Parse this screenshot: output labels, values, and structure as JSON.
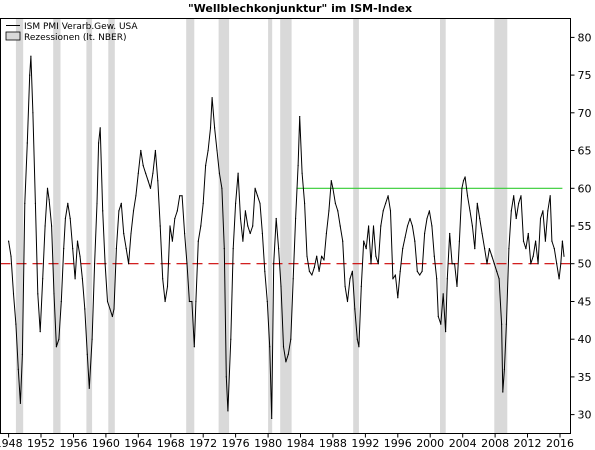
{
  "chart_data": {
    "type": "line",
    "title": "\"Wellblechkonjunktur\" im ISM-Index",
    "legend": [
      {
        "label": "ISM PMI Verarb.Gew. USA",
        "kind": "line",
        "color": "#000000"
      },
      {
        "label": "Rezessionen (lt. NBER)",
        "kind": "box",
        "color": "#d9d9d9"
      }
    ],
    "legend_placement": "top-left",
    "xlim": [
      1947.0,
      2017.3
    ],
    "ylim": [
      27.5,
      82.5
    ],
    "x_ticks": [
      1948,
      1952,
      1956,
      1960,
      1964,
      1968,
      1972,
      1976,
      1980,
      1984,
      1988,
      1992,
      1996,
      2000,
      2004,
      2008,
      2012,
      2016
    ],
    "y_ticks": [
      30,
      35,
      40,
      45,
      50,
      55,
      60,
      65,
      70,
      75,
      80
    ],
    "y_axis_side": "right",
    "grid": false,
    "recessions": [
      [
        1948.9,
        1949.8
      ],
      [
        1953.5,
        1954.4
      ],
      [
        1957.6,
        1958.3
      ],
      [
        1960.3,
        1961.1
      ],
      [
        1969.9,
        1970.9
      ],
      [
        1973.9,
        1975.2
      ],
      [
        1980.0,
        1980.5
      ],
      [
        1981.5,
        1982.9
      ],
      [
        1990.5,
        1991.2
      ],
      [
        2001.2,
        2001.9
      ],
      [
        2007.9,
        2009.5
      ]
    ],
    "reference_lines": [
      {
        "name": "threshold-50",
        "y": 50,
        "x_from": 1947.0,
        "x_to": 2017.3,
        "color": "#cc0000",
        "style": "dashed"
      },
      {
        "name": "level-60",
        "y": 60,
        "x_from": 1983.5,
        "x_to": 2016.3,
        "color": "#33cc33",
        "style": "solid"
      }
    ],
    "series": [
      {
        "name": "ISM PMI Verarb.Gew. USA",
        "color": "#000000",
        "points": [
          [
            1948.0,
            53.0
          ],
          [
            1948.3,
            51.0
          ],
          [
            1948.6,
            46.0
          ],
          [
            1948.9,
            42.0
          ],
          [
            1949.2,
            36.0
          ],
          [
            1949.45,
            31.5
          ],
          [
            1949.7,
            38.0
          ],
          [
            1950.0,
            58.0
          ],
          [
            1950.3,
            66.0
          ],
          [
            1950.6,
            75.0
          ],
          [
            1950.75,
            77.5
          ],
          [
            1951.0,
            70.0
          ],
          [
            1951.3,
            58.0
          ],
          [
            1951.6,
            46.0
          ],
          [
            1951.9,
            41.0
          ],
          [
            1952.2,
            48.0
          ],
          [
            1952.5,
            55.0
          ],
          [
            1952.8,
            60.0
          ],
          [
            1953.0,
            58.5
          ],
          [
            1953.3,
            55.0
          ],
          [
            1953.6,
            46.0
          ],
          [
            1953.9,
            39.0
          ],
          [
            1954.2,
            40.0
          ],
          [
            1954.5,
            45.0
          ],
          [
            1954.8,
            52.0
          ],
          [
            1955.0,
            56.0
          ],
          [
            1955.3,
            58.0
          ],
          [
            1955.6,
            56.0
          ],
          [
            1955.9,
            52.0
          ],
          [
            1956.2,
            48.0
          ],
          [
            1956.5,
            53.0
          ],
          [
            1956.8,
            51.0
          ],
          [
            1957.1,
            48.0
          ],
          [
            1957.4,
            44.0
          ],
          [
            1957.7,
            38.0
          ],
          [
            1957.95,
            33.5
          ],
          [
            1958.3,
            40.0
          ],
          [
            1958.6,
            50.0
          ],
          [
            1958.9,
            58.0
          ],
          [
            1959.1,
            66.0
          ],
          [
            1959.3,
            68.0
          ],
          [
            1959.6,
            57.0
          ],
          [
            1959.9,
            50.0
          ],
          [
            1960.2,
            45.0
          ],
          [
            1960.5,
            44.0
          ],
          [
            1960.8,
            43.0
          ],
          [
            1961.0,
            44.0
          ],
          [
            1961.3,
            52.0
          ],
          [
            1961.6,
            57.0
          ],
          [
            1961.9,
            58.0
          ],
          [
            1962.2,
            54.0
          ],
          [
            1962.5,
            52.0
          ],
          [
            1962.8,
            50.0
          ],
          [
            1963.1,
            54.0
          ],
          [
            1963.4,
            57.0
          ],
          [
            1963.7,
            59.0
          ],
          [
            1964.0,
            62.0
          ],
          [
            1964.3,
            65.0
          ],
          [
            1964.6,
            63.0
          ],
          [
            1964.9,
            62.0
          ],
          [
            1965.2,
            61.0
          ],
          [
            1965.5,
            60.0
          ],
          [
            1965.8,
            62.0
          ],
          [
            1966.1,
            65.0
          ],
          [
            1966.4,
            61.0
          ],
          [
            1966.7,
            55.0
          ],
          [
            1967.0,
            48.0
          ],
          [
            1967.3,
            45.0
          ],
          [
            1967.6,
            47.0
          ],
          [
            1967.9,
            55.0
          ],
          [
            1968.2,
            53.0
          ],
          [
            1968.5,
            56.0
          ],
          [
            1968.8,
            57.0
          ],
          [
            1969.1,
            59.0
          ],
          [
            1969.4,
            59.0
          ],
          [
            1969.7,
            54.0
          ],
          [
            1970.0,
            50.0
          ],
          [
            1970.3,
            45.0
          ],
          [
            1970.6,
            45.0
          ],
          [
            1970.9,
            39.0
          ],
          [
            1971.1,
            45.0
          ],
          [
            1971.4,
            53.0
          ],
          [
            1971.7,
            55.0
          ],
          [
            1972.0,
            58.0
          ],
          [
            1972.3,
            63.0
          ],
          [
            1972.6,
            65.0
          ],
          [
            1972.9,
            68.0
          ],
          [
            1973.1,
            72.0
          ],
          [
            1973.4,
            68.0
          ],
          [
            1973.7,
            65.0
          ],
          [
            1974.0,
            62.0
          ],
          [
            1974.3,
            60.0
          ],
          [
            1974.6,
            52.0
          ],
          [
            1974.85,
            35.0
          ],
          [
            1975.05,
            30.5
          ],
          [
            1975.4,
            40.0
          ],
          [
            1975.7,
            52.0
          ],
          [
            1976.0,
            58.0
          ],
          [
            1976.3,
            62.0
          ],
          [
            1976.6,
            56.0
          ],
          [
            1976.9,
            53.0
          ],
          [
            1977.2,
            57.0
          ],
          [
            1977.5,
            55.0
          ],
          [
            1977.8,
            54.0
          ],
          [
            1978.1,
            55.0
          ],
          [
            1978.4,
            60.0
          ],
          [
            1978.7,
            59.0
          ],
          [
            1979.0,
            58.0
          ],
          [
            1979.3,
            54.0
          ],
          [
            1979.6,
            49.0
          ],
          [
            1979.9,
            45.0
          ],
          [
            1980.2,
            39.0
          ],
          [
            1980.45,
            29.5
          ],
          [
            1980.7,
            50.0
          ],
          [
            1981.0,
            56.0
          ],
          [
            1981.3,
            52.0
          ],
          [
            1981.6,
            47.0
          ],
          [
            1981.9,
            39.0
          ],
          [
            1982.2,
            37.0
          ],
          [
            1982.5,
            38.0
          ],
          [
            1982.8,
            40.0
          ],
          [
            1983.1,
            48.0
          ],
          [
            1983.4,
            56.0
          ],
          [
            1983.7,
            63.0
          ],
          [
            1983.9,
            69.5
          ],
          [
            1984.2,
            62.0
          ],
          [
            1984.5,
            58.0
          ],
          [
            1984.8,
            51.0
          ],
          [
            1985.1,
            49.0
          ],
          [
            1985.4,
            48.5
          ],
          [
            1985.7,
            49.5
          ],
          [
            1986.0,
            51.0
          ],
          [
            1986.3,
            49.0
          ],
          [
            1986.6,
            51.0
          ],
          [
            1986.9,
            50.5
          ],
          [
            1987.2,
            54.0
          ],
          [
            1987.5,
            57.0
          ],
          [
            1987.8,
            61.0
          ],
          [
            1988.0,
            60.0
          ],
          [
            1988.3,
            58.0
          ],
          [
            1988.6,
            57.0
          ],
          [
            1988.9,
            55.0
          ],
          [
            1989.2,
            53.0
          ],
          [
            1989.5,
            47.0
          ],
          [
            1989.8,
            45.0
          ],
          [
            1990.1,
            48.0
          ],
          [
            1990.4,
            49.0
          ],
          [
            1990.7,
            44.0
          ],
          [
            1991.0,
            40.0
          ],
          [
            1991.2,
            39.0
          ],
          [
            1991.5,
            47.0
          ],
          [
            1991.8,
            53.0
          ],
          [
            1992.1,
            52.0
          ],
          [
            1992.4,
            55.0
          ],
          [
            1992.7,
            50.0
          ],
          [
            1993.0,
            55.0
          ],
          [
            1993.3,
            51.0
          ],
          [
            1993.6,
            50.0
          ],
          [
            1993.9,
            55.0
          ],
          [
            1994.2,
            57.0
          ],
          [
            1994.5,
            58.0
          ],
          [
            1994.8,
            59.0
          ],
          [
            1995.1,
            57.0
          ],
          [
            1995.4,
            48.0
          ],
          [
            1995.7,
            48.5
          ],
          [
            1996.0,
            45.5
          ],
          [
            1996.3,
            49.0
          ],
          [
            1996.6,
            52.0
          ],
          [
            1996.9,
            53.5
          ],
          [
            1997.2,
            55.0
          ],
          [
            1997.5,
            56.0
          ],
          [
            1997.8,
            55.0
          ],
          [
            1998.1,
            53.0
          ],
          [
            1998.4,
            49.0
          ],
          [
            1998.7,
            48.5
          ],
          [
            1999.0,
            49.0
          ],
          [
            1999.3,
            54.0
          ],
          [
            1999.6,
            56.0
          ],
          [
            1999.9,
            57.0
          ],
          [
            2000.2,
            55.0
          ],
          [
            2000.5,
            51.0
          ],
          [
            2000.8,
            48.0
          ],
          [
            2001.0,
            43.0
          ],
          [
            2001.3,
            42.0
          ],
          [
            2001.6,
            46.0
          ],
          [
            2001.9,
            41.0
          ],
          [
            2002.1,
            48.0
          ],
          [
            2002.4,
            54.0
          ],
          [
            2002.7,
            50.0
          ],
          [
            2003.0,
            50.0
          ],
          [
            2003.3,
            47.0
          ],
          [
            2003.6,
            53.0
          ],
          [
            2003.9,
            60.0
          ],
          [
            2004.1,
            61.0
          ],
          [
            2004.3,
            61.5
          ],
          [
            2004.6,
            59.0
          ],
          [
            2004.9,
            57.0
          ],
          [
            2005.2,
            55.0
          ],
          [
            2005.5,
            52.0
          ],
          [
            2005.8,
            58.0
          ],
          [
            2006.1,
            56.0
          ],
          [
            2006.4,
            54.0
          ],
          [
            2006.7,
            52.0
          ],
          [
            2007.0,
            50.0
          ],
          [
            2007.3,
            52.0
          ],
          [
            2007.6,
            51.0
          ],
          [
            2007.9,
            50.0
          ],
          [
            2008.2,
            49.0
          ],
          [
            2008.5,
            48.0
          ],
          [
            2008.8,
            42.0
          ],
          [
            2008.95,
            33.0
          ],
          [
            2009.15,
            36.0
          ],
          [
            2009.4,
            42.0
          ],
          [
            2009.7,
            52.0
          ],
          [
            2010.0,
            57.0
          ],
          [
            2010.3,
            59.0
          ],
          [
            2010.6,
            56.0
          ],
          [
            2010.9,
            58.0
          ],
          [
            2011.2,
            59.0
          ],
          [
            2011.5,
            53.0
          ],
          [
            2011.8,
            52.0
          ],
          [
            2012.1,
            54.0
          ],
          [
            2012.4,
            50.0
          ],
          [
            2012.7,
            51.0
          ],
          [
            2013.0,
            53.0
          ],
          [
            2013.3,
            50.0
          ],
          [
            2013.6,
            56.0
          ],
          [
            2013.9,
            57.0
          ],
          [
            2014.2,
            53.0
          ],
          [
            2014.5,
            57.0
          ],
          [
            2014.8,
            59.0
          ],
          [
            2015.0,
            53.0
          ],
          [
            2015.3,
            52.0
          ],
          [
            2015.6,
            50.0
          ],
          [
            2015.9,
            48.0
          ],
          [
            2016.1,
            50.0
          ],
          [
            2016.3,
            53.0
          ],
          [
            2016.5,
            51.0
          ]
        ]
      }
    ]
  }
}
